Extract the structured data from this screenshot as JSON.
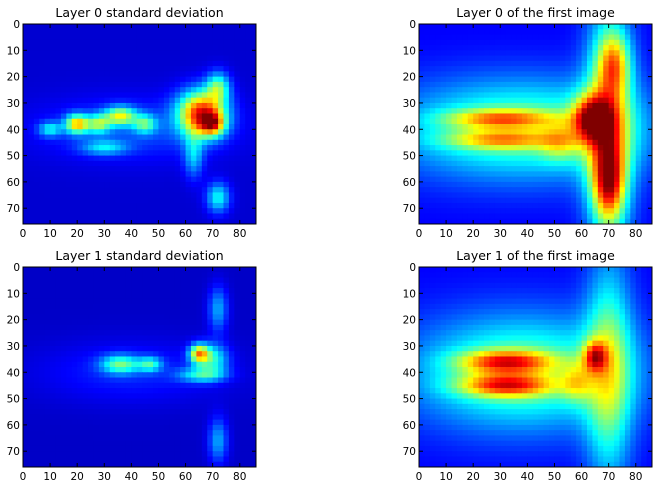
{
  "chart_data": [
    {
      "type": "heatmap",
      "title": "Layer 0 standard deviation",
      "colormap": "jet",
      "xlim": [
        0,
        86
      ],
      "ylim": [
        76,
        0
      ],
      "xticks": [
        "0",
        "10",
        "20",
        "30",
        "40",
        "50",
        "60",
        "70",
        "80"
      ],
      "yticks": [
        "0",
        "10",
        "20",
        "30",
        "40",
        "50",
        "60",
        "70"
      ],
      "values": {
        "background": 0.08,
        "blobs": [
          {
            "x": 66,
            "y": 34,
            "sx": 6,
            "sy": 6,
            "v": 0.75
          },
          {
            "x": 70,
            "y": 38,
            "sx": 3,
            "sy": 3,
            "v": 0.45
          },
          {
            "x": 20,
            "y": 38,
            "sx": 3,
            "sy": 2.5,
            "v": 0.55
          },
          {
            "x": 36,
            "y": 35,
            "sx": 4,
            "sy": 2.5,
            "v": 0.45
          },
          {
            "x": 28,
            "y": 38,
            "sx": 3,
            "sy": 2.5,
            "v": 0.35
          },
          {
            "x": 45,
            "y": 38,
            "sx": 3,
            "sy": 2.5,
            "v": 0.3
          },
          {
            "x": 72,
            "y": 24,
            "sx": 3,
            "sy": 4,
            "v": 0.35
          },
          {
            "x": 72,
            "y": 66,
            "sx": 3,
            "sy": 4,
            "v": 0.3
          },
          {
            "x": 10,
            "y": 40,
            "sx": 3,
            "sy": 2,
            "v": 0.25
          },
          {
            "x": 30,
            "y": 47,
            "sx": 6,
            "sy": 2,
            "v": 0.22
          },
          {
            "x": 63,
            "y": 50,
            "sx": 2.5,
            "sy": 6,
            "v": 0.22
          },
          {
            "x": 40,
            "y": 40,
            "sx": 24,
            "sy": 8,
            "v": 0.12
          }
        ]
      }
    },
    {
      "type": "heatmap",
      "title": "Layer 0 of the first image",
      "colormap": "jet",
      "xlim": [
        0,
        86
      ],
      "ylim": [
        76,
        0
      ],
      "xticks": [
        "0",
        "10",
        "20",
        "30",
        "40",
        "50",
        "60",
        "70",
        "80"
      ],
      "yticks": [
        "0",
        "10",
        "20",
        "30",
        "40",
        "50",
        "60",
        "70"
      ],
      "values": {
        "background": 0.12,
        "blobs": [
          {
            "x": 38,
            "y": 40,
            "sx": 32,
            "sy": 13,
            "v": 0.38
          },
          {
            "x": 70,
            "y": 40,
            "sx": 6,
            "sy": 32,
            "v": 0.45
          },
          {
            "x": 64,
            "y": 36,
            "sx": 5,
            "sy": 6,
            "v": 0.55
          },
          {
            "x": 70,
            "y": 60,
            "sx": 4,
            "sy": 10,
            "v": 0.5
          },
          {
            "x": 72,
            "y": 15,
            "sx": 4,
            "sy": 8,
            "v": 0.35
          },
          {
            "x": 30,
            "y": 36,
            "sx": 14,
            "sy": 2.5,
            "v": 0.35
          },
          {
            "x": 30,
            "y": 44,
            "sx": 14,
            "sy": 2.5,
            "v": 0.3
          },
          {
            "x": 52,
            "y": 45,
            "sx": 5,
            "sy": 5,
            "v": 0.2
          }
        ]
      }
    },
    {
      "type": "heatmap",
      "title": "Layer 1 standard deviation",
      "colormap": "jet",
      "xlim": [
        0,
        86
      ],
      "ylim": [
        76,
        0
      ],
      "xticks": [
        "0",
        "10",
        "20",
        "30",
        "40",
        "50",
        "60",
        "70",
        "80"
      ],
      "yticks": [
        "0",
        "10",
        "20",
        "30",
        "40",
        "50",
        "60",
        "70"
      ],
      "values": {
        "background": 0.07,
        "blobs": [
          {
            "x": 65,
            "y": 33,
            "sx": 2.5,
            "sy": 2.5,
            "v": 0.55
          },
          {
            "x": 70,
            "y": 35,
            "sx": 4,
            "sy": 4,
            "v": 0.3
          },
          {
            "x": 36,
            "y": 37,
            "sx": 5,
            "sy": 2.5,
            "v": 0.35
          },
          {
            "x": 47,
            "y": 37,
            "sx": 3,
            "sy": 2,
            "v": 0.28
          },
          {
            "x": 66,
            "y": 41,
            "sx": 6,
            "sy": 2,
            "v": 0.28
          },
          {
            "x": 72,
            "y": 16,
            "sx": 2.5,
            "sy": 6,
            "v": 0.22
          },
          {
            "x": 72,
            "y": 66,
            "sx": 2.5,
            "sy": 6,
            "v": 0.22
          },
          {
            "x": 40,
            "y": 40,
            "sx": 24,
            "sy": 8,
            "v": 0.09
          }
        ]
      }
    },
    {
      "type": "heatmap",
      "title": "Layer 1 of the first image",
      "colormap": "jet",
      "xlim": [
        0,
        86
      ],
      "ylim": [
        76,
        0
      ],
      "xticks": [
        "0",
        "10",
        "20",
        "30",
        "40",
        "50",
        "60",
        "70",
        "80"
      ],
      "yticks": [
        "0",
        "10",
        "20",
        "30",
        "40",
        "50",
        "60",
        "70"
      ],
      "values": {
        "background": 0.12,
        "blobs": [
          {
            "x": 38,
            "y": 40,
            "sx": 28,
            "sy": 15,
            "v": 0.38
          },
          {
            "x": 32,
            "y": 36,
            "sx": 12,
            "sy": 3,
            "v": 0.45
          },
          {
            "x": 32,
            "y": 45,
            "sx": 12,
            "sy": 3,
            "v": 0.45
          },
          {
            "x": 65,
            "y": 34,
            "sx": 3,
            "sy": 4,
            "v": 0.4
          },
          {
            "x": 70,
            "y": 40,
            "sx": 6,
            "sy": 30,
            "v": 0.35
          },
          {
            "x": 58,
            "y": 44,
            "sx": 4,
            "sy": 5,
            "v": 0.2
          }
        ]
      }
    }
  ]
}
